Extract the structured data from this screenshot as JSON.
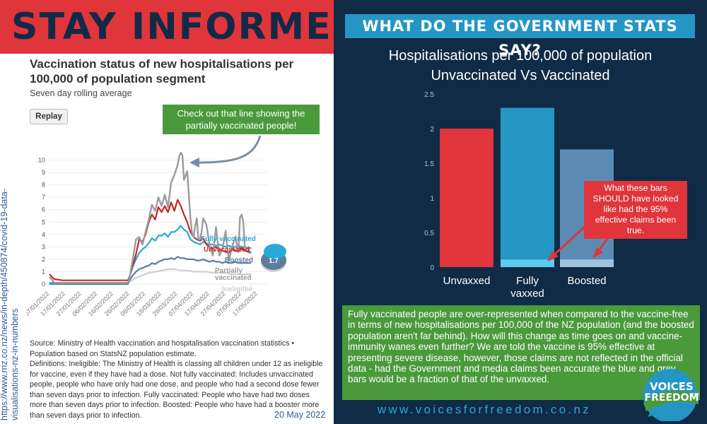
{
  "left": {
    "title": "STAY INFORMED",
    "side_url": "https://www.rnz.co.nz/news/in-depth/450874/covid-19-data-visualisations-nz-in-numbers",
    "callout": "Check out that line showing the partially vaccinated people!",
    "source": "Source: Ministry of Health vaccination and hospitalisation vaccination statistics • Population based on StatsNZ population estimate.",
    "definitions": "Definitions: Ineligible: The Ministry of Health is classing all children under 12 as ineligible for vaccine, even if they have had a dose. Not fully vaccinated: Includes unvaccinated people, people who have only had one dose, and people who had a second dose fewer than seven days prior to infection. Fully vaccinated: People who have had two doses more than seven days prior to infection. Boosted: People who have had a booster more than seven days prior to infection.",
    "date": "20 May 2022",
    "replay_label": "Replay"
  },
  "right": {
    "title": "WHAT DO THE GOVERNMENT STATS SAY?",
    "annotation": "What these bars SHOULD have looked like had the 95% effective claims been true.",
    "summary": "Fully vaccinated people are over-represented when compared to the vaccine-free in terms of new hospitalisations per 100,000 of the NZ population (and the boosted population aren't far behind). How will this change as time goes on and vaccine-immunity wanes even further? We are told the vaccine is 95% effective at presenting severe disease, however, those claims are not reflected in the official data - had the Government and media claims been accurate the blue and grey bars would be a fraction of that of the unvaxxed.",
    "website": "www.voicesforfreedom.co.nz",
    "logo_line1": "VOICES",
    "logo_line2": "FREEDOM",
    "logo_small": "FOR"
  },
  "colors": {
    "red": "#e0353b",
    "navy": "#0f2b45",
    "green": "#4a9a3c",
    "blue": "#2595c4",
    "light_blue": "#5ccbf0",
    "steel": "#5b8bb3"
  },
  "chart_data": [
    {
      "type": "line",
      "title": "Vaccination status of new hospitalisations per 100,000 of population segment",
      "subtitle": "Seven day rolling average",
      "ylim": [
        0,
        11
      ],
      "yticks": [
        0,
        1,
        2,
        3,
        4,
        5,
        6,
        7,
        8,
        9,
        10
      ],
      "x_range": [
        0,
        136
      ],
      "x_tick_labels": [
        "07/01/2022",
        "17/01/2022",
        "27/01/2022",
        "06/02/2022",
        "16/02/2022",
        "26/02/2022",
        "08/03/2022",
        "18/03/2022",
        "28/03/2022",
        "07/04/2022",
        "17/04/2022",
        "27/04/2022",
        "07/05/2022",
        "17/05/2022"
      ],
      "x_tick_days": [
        0,
        10,
        20,
        30,
        40,
        50,
        60,
        70,
        80,
        90,
        100,
        110,
        120,
        130
      ],
      "end_value_label": "1.7",
      "series": [
        {
          "name": "Partially vaccinated",
          "color": "#9b9b9b",
          "label_lines": [
            "Partially",
            "vaccinated"
          ],
          "x": [
            0,
            3,
            8,
            20,
            30,
            40,
            49,
            50,
            52,
            54,
            56,
            58,
            60,
            62,
            64,
            66,
            68,
            70,
            72,
            74,
            76,
            78,
            80,
            81,
            82,
            83,
            84,
            86,
            88,
            89,
            90,
            91,
            92,
            93,
            94,
            95,
            96,
            98,
            100,
            102,
            104,
            106,
            108,
            110,
            112,
            114,
            116,
            118,
            119,
            120,
            121,
            122,
            124,
            126
          ],
          "y": [
            0.6,
            0.1,
            0.1,
            0.1,
            0.1,
            0.1,
            0.1,
            0.5,
            2.0,
            3.6,
            3.8,
            3.2,
            4.2,
            5.2,
            6.4,
            5.9,
            7.0,
            6.3,
            7.2,
            6.2,
            8.2,
            8.8,
            9.6,
            10.3,
            10.6,
            10.4,
            8.4,
            9.1,
            5.4,
            4.1,
            3.8,
            4.7,
            5.3,
            3.6,
            3.6,
            4.2,
            5.3,
            4.8,
            3.1,
            2.3,
            4.6,
            2.3,
            2.8,
            4.3,
            1.9,
            3.0,
            3.8,
            2.6,
            5.4,
            5.6,
            5.1,
            3.0,
            2.8,
            2.5
          ]
        },
        {
          "name": "Unvaccinated",
          "color": "#c62828",
          "x": [
            0,
            3,
            8,
            20,
            30,
            40,
            49,
            50,
            52,
            54,
            56,
            58,
            60,
            62,
            64,
            66,
            68,
            70,
            72,
            74,
            76,
            78,
            80,
            82,
            84,
            86,
            88,
            90,
            92,
            94,
            96,
            98,
            100,
            102,
            104,
            106,
            108,
            110,
            112,
            114,
            116,
            118,
            120,
            122,
            124,
            126
          ],
          "y": [
            0.8,
            0.4,
            0.3,
            0.3,
            0.3,
            0.3,
            0.3,
            0.6,
            1.5,
            2.4,
            3.6,
            3.4,
            4.0,
            5.0,
            5.6,
            5.2,
            6.2,
            5.8,
            6.3,
            5.8,
            6.6,
            5.9,
            6.8,
            6.3,
            5.6,
            5.0,
            4.2,
            3.8,
            3.6,
            3.5,
            3.7,
            3.2,
            3.0,
            2.9,
            3.0,
            2.8,
            2.7,
            2.6,
            2.5,
            2.8,
            2.7,
            2.6,
            2.9,
            2.7,
            2.6,
            2.5
          ]
        },
        {
          "name": "Fully vaccinated",
          "color": "#29a9d8",
          "x": [
            0,
            20,
            40,
            49,
            50,
            52,
            54,
            56,
            58,
            60,
            62,
            64,
            66,
            68,
            70,
            72,
            74,
            76,
            78,
            80,
            82,
            84,
            86,
            88,
            90,
            92,
            94,
            96,
            98,
            100,
            102,
            104,
            106,
            108,
            110,
            112,
            114,
            116,
            118,
            120,
            122,
            124,
            126
          ],
          "y": [
            0.1,
            0.1,
            0.1,
            0.1,
            0.6,
            1.4,
            2.0,
            2.5,
            2.8,
            3.0,
            3.3,
            3.7,
            3.5,
            3.9,
            3.9,
            4.1,
            3.8,
            4.2,
            4.2,
            4.4,
            4.7,
            4.4,
            4.2,
            3.6,
            3.4,
            3.3,
            3.2,
            3.4,
            3.3,
            3.2,
            3.2,
            3.1,
            3.2,
            3.1,
            3.0,
            3.1,
            3.0,
            3.0,
            3.1,
            3.0,
            3.0,
            2.9,
            2.9
          ]
        },
        {
          "name": "Boosted",
          "color": "#5f7e99",
          "x": [
            0,
            20,
            40,
            49,
            50,
            52,
            54,
            56,
            58,
            60,
            62,
            64,
            66,
            68,
            70,
            72,
            74,
            76,
            78,
            80,
            82,
            84,
            86,
            88,
            90,
            92,
            94,
            96,
            98,
            100,
            102,
            104,
            106,
            108,
            110,
            112,
            114,
            116,
            118,
            120,
            122,
            124,
            126
          ],
          "y": [
            0.0,
            0.0,
            0.0,
            0.0,
            0.3,
            0.7,
            1.0,
            1.2,
            1.3,
            1.4,
            1.5,
            1.7,
            1.6,
            1.8,
            1.9,
            2.0,
            2.0,
            2.1,
            2.0,
            2.2,
            2.1,
            2.1,
            2.0,
            2.0,
            2.0,
            1.9,
            1.9,
            2.0,
            1.9,
            1.8,
            1.9,
            1.8,
            1.8,
            1.7,
            1.8,
            1.7,
            1.7,
            1.8,
            1.7,
            1.7,
            1.7,
            1.7,
            1.7
          ]
        },
        {
          "name": "Ineligilbe",
          "color": "#cfcfcf",
          "x": [
            0,
            40,
            49,
            50,
            54,
            58,
            62,
            66,
            70,
            74,
            78,
            82,
            86,
            90,
            94,
            98,
            102,
            106,
            110,
            114,
            118,
            122,
            126
          ],
          "y": [
            0.0,
            0.0,
            0.0,
            0.2,
            0.5,
            0.7,
            0.9,
            1.0,
            1.1,
            1.2,
            1.2,
            1.1,
            1.1,
            1.0,
            1.0,
            1.0,
            0.9,
            0.9,
            0.9,
            0.8,
            0.8,
            0.8,
            0.8
          ]
        }
      ]
    },
    {
      "type": "bar",
      "title": "Hospitalisations per 100,000 of population",
      "subtitle": "Unvaccinated Vs Vaccinated",
      "categories": [
        "Unvaxxed",
        "Fully vaxxed",
        "Boosted"
      ],
      "category_label_lines": [
        [
          "Unvaxxed"
        ],
        [
          "Fully",
          "vaxxed"
        ],
        [
          "Boosted"
        ]
      ],
      "values": [
        2.0,
        2.3,
        1.7
      ],
      "expected_values": [
        null,
        0.1,
        0.1
      ],
      "colors": [
        "#e0353b",
        "#2595c4",
        "#5b8bb3"
      ],
      "expected_colors": [
        null,
        "#5ccbf0",
        "#9cc4de"
      ],
      "ylim": [
        0,
        2.5
      ],
      "yticks": [
        0,
        0.5,
        1,
        1.5,
        2,
        2.5
      ],
      "ytick_labels": [
        "0",
        "0.5",
        "1",
        "1.5",
        "2",
        "2.5"
      ]
    }
  ]
}
